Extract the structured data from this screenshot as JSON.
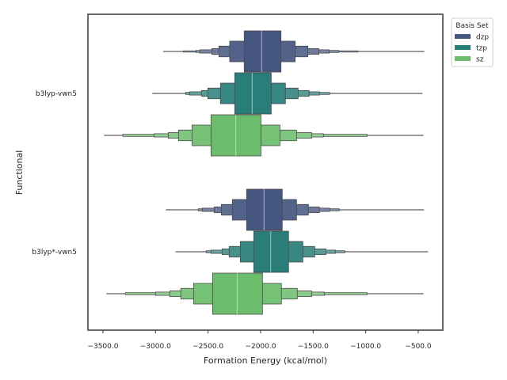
{
  "chart_data": {
    "type": "boxen",
    "title": "",
    "xlabel": "Formation Energy (kcal/mol)",
    "ylabel": "Functional",
    "xlim": [
      -3643,
      -266
    ],
    "xticks": [
      -3500,
      -3000,
      -2500,
      -2000,
      -1500,
      -1000,
      -500
    ],
    "xtick_labels": [
      "−3500.0",
      "−3000.0",
      "−2500.0",
      "−2000.0",
      "−1500.0",
      "−1000.0",
      "−500.0"
    ],
    "categories": [
      "b3lyp-vwn5",
      "b3lyp*-vwn5"
    ],
    "grid": false,
    "legend": {
      "title": "Basis Set",
      "placement": "top-right",
      "entries": [
        "dzp",
        "tzp",
        "sz"
      ]
    },
    "series": [
      {
        "name": "dzp",
        "color": "#455681",
        "boxes": [
          {
            "category": "b3lyp-vwn5",
            "median": -1990,
            "whisker": [
              -2927,
              -442
            ],
            "levels": [
              [
                -2156,
                -1806
              ],
              [
                -2294,
                -1671
              ],
              [
                -2397,
                -1550
              ],
              [
                -2465,
                -1445
              ],
              [
                -2578,
                -1347
              ],
              [
                -2615,
                -1256
              ],
              [
                -2736,
                -1075
              ]
            ]
          },
          {
            "category": "b3lyp*-vwn5",
            "median": -1967,
            "whisker": [
              -2902,
              -445
            ],
            "levels": [
              [
                -2133,
                -1794
              ],
              [
                -2269,
                -1658
              ],
              [
                -2374,
                -1545
              ],
              [
                -2442,
                -1440
              ],
              [
                -2555,
                -1342
              ],
              [
                -2593,
                -1251
              ]
            ]
          }
        ]
      },
      {
        "name": "tzp",
        "color": "#2a7e79",
        "boxes": [
          {
            "category": "b3lyp-vwn5",
            "median": -2080,
            "whisker": [
              -3030,
              -460
            ],
            "levels": [
              [
                -2246,
                -1899
              ],
              [
                -2382,
                -1764
              ],
              [
                -2502,
                -1643
              ],
              [
                -2563,
                -1538
              ],
              [
                -2676,
                -1440
              ],
              [
                -2713,
                -1342
              ]
            ]
          },
          {
            "category": "b3lyp*-vwn5",
            "median": -1904,
            "whisker": [
              -2809,
              -407
            ],
            "levels": [
              [
                -2065,
                -1734
              ],
              [
                -2193,
                -1598
              ],
              [
                -2299,
                -1485
              ],
              [
                -2367,
                -1379
              ],
              [
                -2472,
                -1289
              ],
              [
                -2518,
                -1198
              ]
            ]
          }
        ]
      },
      {
        "name": "sz",
        "color": "#6bbd6c",
        "boxes": [
          {
            "category": "b3lyp-vwn5",
            "median": -2236,
            "whisker": [
              -3490,
              -450
            ],
            "levels": [
              [
                -2472,
                -1997
              ],
              [
                -2653,
                -1816
              ],
              [
                -2781,
                -1658
              ],
              [
                -2879,
                -1515
              ],
              [
                -3015,
                -1402
              ],
              [
                -3311,
                -987
              ]
            ]
          },
          {
            "category": "b3lyp*-vwn5",
            "median": -2223,
            "whisker": [
              -3467,
              -450
            ],
            "levels": [
              [
                -2457,
                -1982
              ],
              [
                -2638,
                -1802
              ],
              [
                -2759,
                -1651
              ],
              [
                -2864,
                -1515
              ],
              [
                -3000,
                -1394
              ],
              [
                -3286,
                -987
              ]
            ]
          }
        ]
      }
    ]
  }
}
